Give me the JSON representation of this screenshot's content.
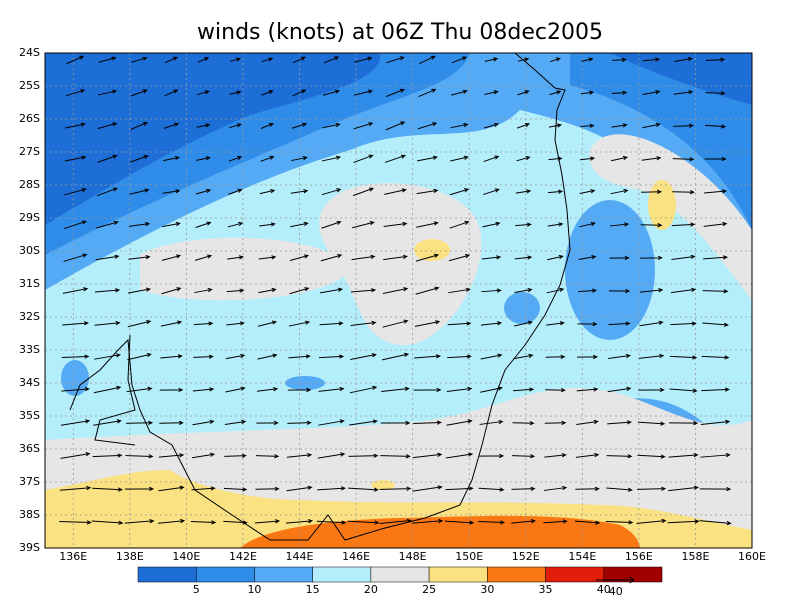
{
  "title": "winds (knots) at 06Z Thu 08dec2005",
  "lat_labels": [
    "24S",
    "25S",
    "26S",
    "27S",
    "28S",
    "29S",
    "30S",
    "31S",
    "32S",
    "33S",
    "34S",
    "35S",
    "36S",
    "37S",
    "38S",
    "39S"
  ],
  "lon_labels": [
    "136E",
    "138E",
    "140E",
    "142E",
    "144E",
    "146E",
    "148E",
    "150E",
    "152E",
    "154E",
    "156E",
    "158E",
    "160E"
  ],
  "colorbar": {
    "levels": [
      5,
      10,
      15,
      20,
      25,
      30,
      35,
      40
    ],
    "colors": [
      "#1e6ed8",
      "#2f8ce8",
      "#55aaf5",
      "#b4eefa",
      "#e6e6e6",
      "#fae182",
      "#fa7814",
      "#e11e0a",
      "#a00000"
    ]
  },
  "reference_vector": "40"
}
